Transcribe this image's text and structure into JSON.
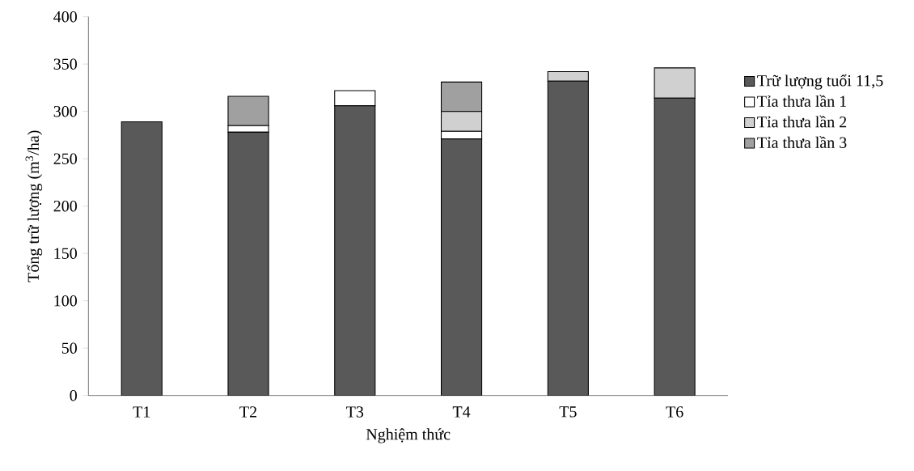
{
  "chart_data": {
    "type": "bar",
    "stacked": true,
    "xlabel": "Nghiệm thức",
    "ylabel": "Tổng trữ lượng (m$^{3}$/ha)",
    "categories": [
      "T1",
      "T2",
      "T3",
      "T4",
      "T5",
      "T6"
    ],
    "series": [
      {
        "name": "Trữ lượng tuổi 11,5",
        "color": "#595959",
        "values": [
          289,
          278,
          306,
          271,
          332,
          314
        ]
      },
      {
        "name": "Tỉa thưa lần 1",
        "color": "#ffffff",
        "values": [
          null,
          7,
          16,
          8,
          null,
          null
        ]
      },
      {
        "name": "Tỉa thưa lần 2",
        "color": "#d0d0d0",
        "values": [
          null,
          null,
          null,
          21,
          10,
          32
        ]
      },
      {
        "name": "Tỉa thưa lần 3",
        "color": "#a0a0a0",
        "values": [
          null,
          31,
          null,
          31,
          null,
          null
        ]
      }
    ],
    "ylim": [
      0,
      400
    ],
    "yticks": [
      0,
      50,
      100,
      150,
      200,
      250,
      300,
      350,
      400
    ],
    "legend": "right"
  }
}
